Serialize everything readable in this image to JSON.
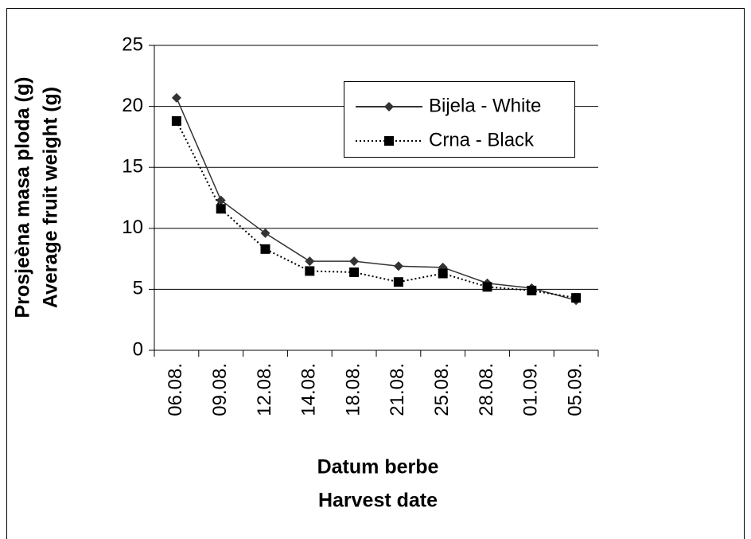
{
  "chart_data": {
    "type": "line",
    "x_label": [
      "Datum berbe",
      "Harvest date"
    ],
    "y_label": [
      "Prosjeèna masa ploda (g)",
      "Average fruit weight (g)"
    ],
    "categories": [
      "06.08.",
      "09.08.",
      "12.08.",
      "14.08.",
      "18.08.",
      "21.08.",
      "25.08.",
      "28.08.",
      "01.09.",
      "05.09."
    ],
    "series": [
      {
        "name": "Bijela - White",
        "color": "#333333",
        "line_style": "solid",
        "marker": "diamond",
        "values": [
          20.7,
          12.3,
          9.6,
          7.3,
          7.3,
          6.9,
          6.8,
          5.5,
          5.1,
          4.1
        ]
      },
      {
        "name": "Crna - Black",
        "color": "#000000",
        "line_style": "dotted",
        "marker": "square",
        "values": [
          18.8,
          11.6,
          8.3,
          6.5,
          6.4,
          5.6,
          6.3,
          5.2,
          4.9,
          4.3
        ]
      }
    ],
    "ylim": [
      0,
      25
    ],
    "yticks": [
      0,
      5,
      10,
      15,
      20,
      25
    ],
    "grid": true
  }
}
